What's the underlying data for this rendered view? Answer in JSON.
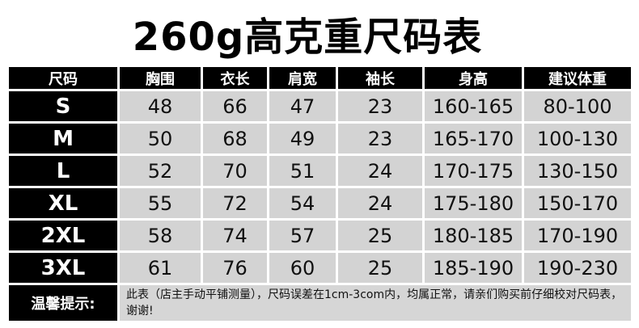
{
  "title": "260g高克重尺码表",
  "headers": [
    "尺码",
    "胸围",
    "衣长",
    "肩宽",
    "袖长",
    "身高",
    "建议体重"
  ],
  "rows": [
    [
      "S",
      "48",
      "66",
      "47",
      "23",
      "160-165",
      "80-100"
    ],
    [
      "M",
      "50",
      "68",
      "49",
      "23",
      "165-170",
      "100-130"
    ],
    [
      "L",
      "52",
      "70",
      "51",
      "24",
      "170-175",
      "130-150"
    ],
    [
      "XL",
      "55",
      "72",
      "54",
      "24",
      "175-180",
      "150-170"
    ],
    [
      "2XL",
      "58",
      "74",
      "57",
      "25",
      "180-185",
      "170-190"
    ],
    [
      "3XL",
      "61",
      "76",
      "60",
      "25",
      "185-190",
      "190-230"
    ]
  ],
  "note": {
    "label": "温馨提示:",
    "text": "此表（店主手动平铺测量），尺码误差在1cm-3com内，均属正常，请亲们购买前仔细校对尺码表，谢谢!"
  }
}
